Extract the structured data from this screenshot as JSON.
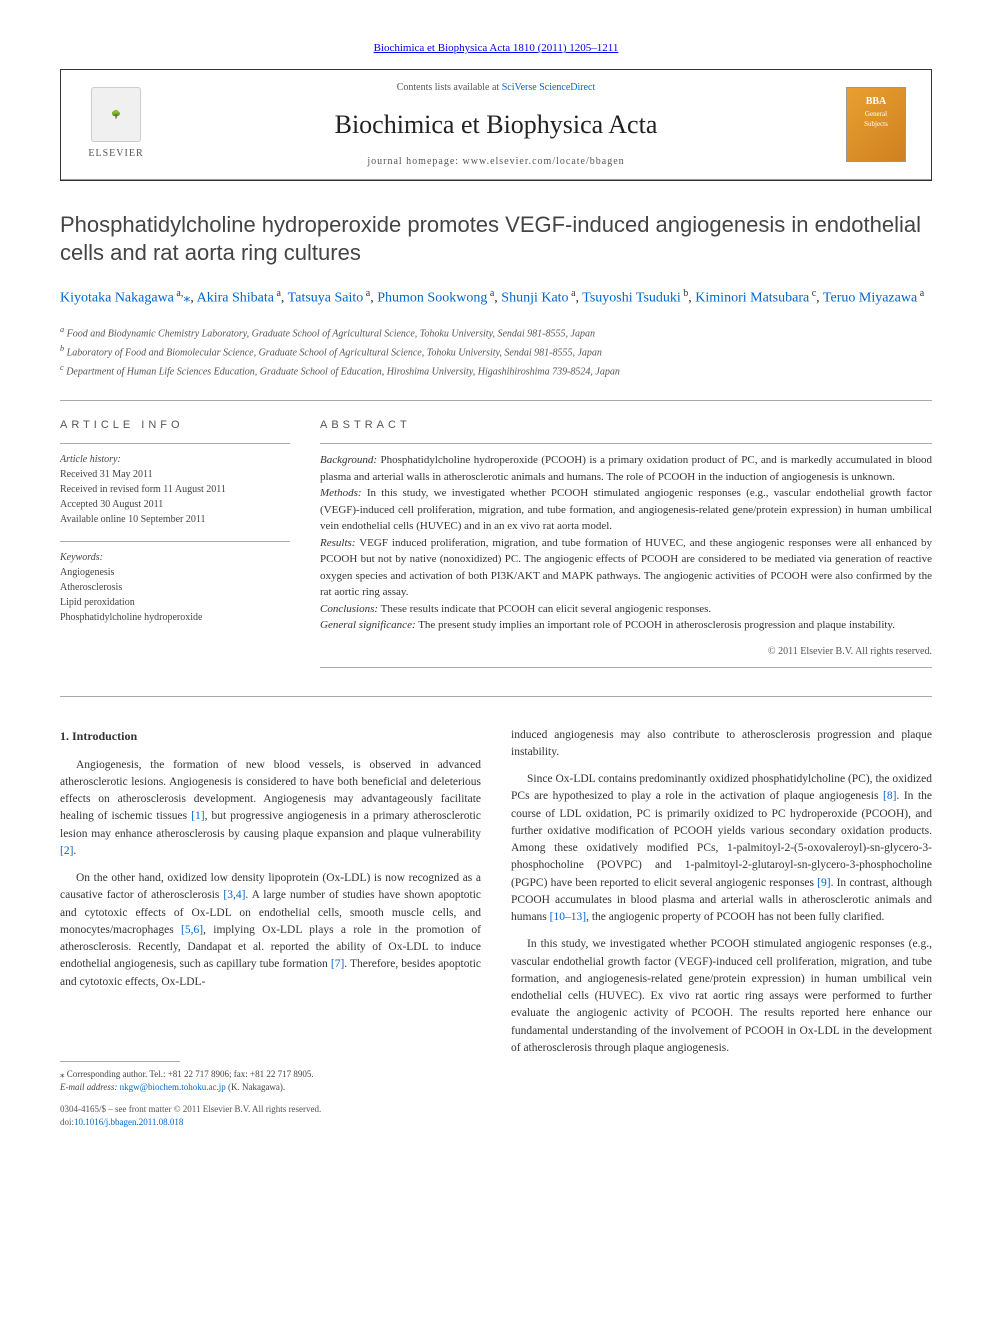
{
  "journal_citation": "Biochimica et Biophysica Acta 1810 (2011) 1205–1211",
  "header": {
    "contents_prefix": "Contents lists available at ",
    "contents_link": "SciVerse ScienceDirect",
    "journal_name": "Biochimica et Biophysica Acta",
    "homepage_prefix": "journal homepage: ",
    "homepage_url": "www.elsevier.com/locate/bbagen",
    "elsevier": "ELSEVIER",
    "bba_logo_line1": "BBA",
    "bba_logo_line2": "General",
    "bba_logo_line3": "Subjects"
  },
  "title": "Phosphatidylcholine hydroperoxide promotes VEGF-induced angiogenesis in endothelial cells and rat aorta ring cultures",
  "authors": [
    {
      "name": "Kiyotaka Nakagawa",
      "affil": "a",
      "corr": true
    },
    {
      "name": "Akira Shibata",
      "affil": "a"
    },
    {
      "name": "Tatsuya Saito",
      "affil": "a"
    },
    {
      "name": "Phumon Sookwong",
      "affil": "a"
    },
    {
      "name": "Shunji Kato",
      "affil": "a"
    },
    {
      "name": "Tsuyoshi Tsuduki",
      "affil": "b"
    },
    {
      "name": "Kiminori Matsubara",
      "affil": "c"
    },
    {
      "name": "Teruo Miyazawa",
      "affil": "a"
    }
  ],
  "affiliations": {
    "a": "Food and Biodynamic Chemistry Laboratory, Graduate School of Agricultural Science, Tohoku University, Sendai 981-8555, Japan",
    "b": "Laboratory of Food and Biomolecular Science, Graduate School of Agricultural Science, Tohoku University, Sendai 981-8555, Japan",
    "c": "Department of Human Life Sciences Education, Graduate School of Education, Hiroshima University, Higashihiroshima 739-8524, Japan"
  },
  "article_info": {
    "heading": "ARTICLE INFO",
    "history_label": "Article history:",
    "received": "Received 31 May 2011",
    "revised": "Received in revised form 11 August 2011",
    "accepted": "Accepted 30 August 2011",
    "online": "Available online 10 September 2011",
    "keywords_label": "Keywords:",
    "keywords": [
      "Angiogenesis",
      "Atherosclerosis",
      "Lipid peroxidation",
      "Phosphatidylcholine hydroperoxide"
    ]
  },
  "abstract": {
    "heading": "ABSTRACT",
    "background_label": "Background:",
    "background": "Phosphatidylcholine hydroperoxide (PCOOH) is a primary oxidation product of PC, and is markedly accumulated in blood plasma and arterial walls in atherosclerotic animals and humans. The role of PCOOH in the induction of angiogenesis is unknown.",
    "methods_label": "Methods:",
    "methods": "In this study, we investigated whether PCOOH stimulated angiogenic responses (e.g., vascular endothelial growth factor (VEGF)-induced cell proliferation, migration, and tube formation, and angiogenesis-related gene/protein expression) in human umbilical vein endothelial cells (HUVEC) and in an ex vivo rat aorta model.",
    "results_label": "Results:",
    "results": "VEGF induced proliferation, migration, and tube formation of HUVEC, and these angiogenic responses were all enhanced by PCOOH but not by native (nonoxidized) PC. The angiogenic effects of PCOOH are considered to be mediated via generation of reactive oxygen species and activation of both PI3K/AKT and MAPK pathways. The angiogenic activities of PCOOH were also confirmed by the rat aortic ring assay.",
    "conclusions_label": "Conclusions:",
    "conclusions": "These results indicate that PCOOH can elicit several angiogenic responses.",
    "significance_label": "General significance:",
    "significance": "The present study implies an important role of PCOOH in atherosclerosis progression and plaque instability.",
    "copyright": "© 2011 Elsevier B.V. All rights reserved."
  },
  "intro": {
    "heading": "1. Introduction",
    "p1_a": "Angiogenesis, the formation of new blood vessels, is observed in advanced atherosclerotic lesions. Angiogenesis is considered to have both beneficial and deleterious effects on atherosclerosis development. Angiogenesis may advantageously facilitate healing of ischemic tissues ",
    "p1_ref1": "[1]",
    "p1_b": ", but progressive angiogenesis in a primary atherosclerotic lesion may enhance atherosclerosis by causing plaque expansion and plaque vulnerability ",
    "p1_ref2": "[2]",
    "p1_c": ".",
    "p2_a": "On the other hand, oxidized low density lipoprotein (Ox-LDL) is now recognized as a causative factor of atherosclerosis ",
    "p2_ref1": "[3,4]",
    "p2_b": ". A large number of studies have shown apoptotic and cytotoxic effects of Ox-LDL on endothelial cells, smooth muscle cells, and monocytes/macrophages ",
    "p2_ref2": "[5,6]",
    "p2_c": ", implying Ox-LDL plays a role in the promotion of atherosclerosis. Recently, Dandapat et al. reported the ability of Ox-LDL to induce endothelial angiogenesis, such as capillary tube formation ",
    "p2_ref3": "[7]",
    "p2_d": ". Therefore, besides apoptotic and cytotoxic effects, Ox-LDL-",
    "p2_cont": "induced angiogenesis may also contribute to atherosclerosis progression and plaque instability.",
    "p3_a": "Since Ox-LDL contains predominantly oxidized phosphatidylcholine (PC), the oxidized PCs are hypothesized to play a role in the activation of plaque angiogenesis ",
    "p3_ref1": "[8]",
    "p3_b": ". In the course of LDL oxidation, PC is primarily oxidized to PC hydroperoxide (PCOOH), and further oxidative modification of PCOOH yields various secondary oxidation products. Among these oxidatively modified PCs, 1-palmitoyl-2-(5-oxovaleroyl)-sn-glycero-3-phosphocholine (POVPC) and 1-palmitoyl-2-glutaroyl-sn-glycero-3-phosphocholine (PGPC) have been reported to elicit several angiogenic responses ",
    "p3_ref2": "[9]",
    "p3_c": ". In contrast, although PCOOH accumulates in blood plasma and arterial walls in atherosclerotic animals and humans ",
    "p3_ref3": "[10–13]",
    "p3_d": ", the angiogenic property of PCOOH has not been fully clarified.",
    "p4": "In this study, we investigated whether PCOOH stimulated angiogenic responses (e.g., vascular endothelial growth factor (VEGF)-induced cell proliferation, migration, and tube formation, and angiogenesis-related gene/protein expression) in human umbilical vein endothelial cells (HUVEC). Ex vivo rat aortic ring assays were performed to further evaluate the angiogenic activity of PCOOH. The results reported here enhance our fundamental understanding of the involvement of PCOOH in Ox-LDL in the development of atherosclerosis through plaque angiogenesis."
  },
  "corresponding": {
    "star": "⁎",
    "text": "Corresponding author. Tel.: +81 22 717 8906; fax: +81 22 717 8905.",
    "email_label": "E-mail address:",
    "email": "nkgw@biochem.tohoku.ac.jp",
    "email_name": "(K. Nakagawa)."
  },
  "footer": {
    "issn": "0304-4165/$ – see front matter © 2011 Elsevier B.V. All rights reserved.",
    "doi_label": "doi:",
    "doi": "10.1016/j.bbagen.2011.08.018"
  }
}
